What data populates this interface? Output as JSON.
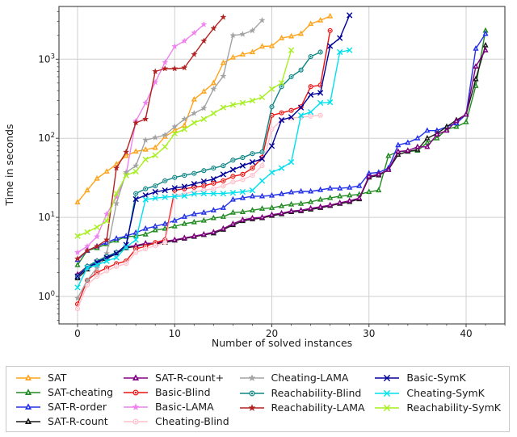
{
  "figure_title": "",
  "chart_data": {
    "type": "line",
    "title": "",
    "xlabel": "Number of solved instances",
    "ylabel": "Time in seconds",
    "x_scale": "linear",
    "y_scale": "log",
    "xlim": [
      -2,
      44
    ],
    "ylim": [
      0.45,
      4600
    ],
    "grid": true,
    "legend_position": "bottom",
    "x_tick_labels": [
      "0",
      "10",
      "20",
      "30",
      "40"
    ],
    "x_tick_values": [
      0,
      10,
      20,
      30,
      40
    ],
    "y_tick_exponents": [
      0,
      1,
      2,
      3
    ],
    "series": [
      {
        "name": "SAT",
        "color": "#FFA41B",
        "marker": "triangle",
        "values": [
          15.5,
          22,
          31,
          38,
          47,
          60,
          68,
          72,
          76,
          105,
          125,
          145,
          310,
          390,
          500,
          900,
          1050,
          1150,
          1230,
          1450,
          1470,
          1850,
          1950,
          2100,
          2800,
          3100,
          3500
        ]
      },
      {
        "name": "SAT-cheating",
        "color": "#228B22",
        "marker": "triangle",
        "values": [
          2.5,
          3.8,
          4.1,
          4.6,
          5.1,
          5.7,
          5.8,
          6.1,
          6.9,
          7.2,
          7.7,
          8.3,
          8.7,
          9.1,
          9.8,
          10.2,
          11.5,
          11.7,
          12.3,
          12.9,
          13.2,
          13.9,
          14.6,
          14.9,
          15.7,
          16.8,
          17.6,
          18.5,
          19,
          19.5,
          21,
          22,
          60,
          68,
          68,
          70,
          88,
          100,
          130,
          140,
          160,
          460,
          2300
        ]
      },
      {
        "name": "SAT-R-order",
        "color": "#2332E8",
        "marker": "triangle",
        "values": [
          2.9,
          3.8,
          4.3,
          4.8,
          5.4,
          5.8,
          6.4,
          7.2,
          7.7,
          8.3,
          9.1,
          10.2,
          11,
          11.5,
          12.3,
          13.2,
          16.8,
          17.6,
          18.5,
          18.5,
          18.9,
          19.8,
          20.8,
          21.3,
          21.3,
          22.3,
          23.3,
          23.3,
          23.8,
          25,
          36,
          37,
          42,
          82,
          88,
          100,
          125,
          125,
          140,
          155,
          200,
          1360,
          2100
        ]
      },
      {
        "name": "SAT-R-count",
        "color": "#1A1A1A",
        "marker": "triangle",
        "values": [
          1.7,
          2.2,
          2.6,
          3.0,
          3.5,
          4.1,
          4.3,
          4.6,
          4.6,
          4.8,
          5.1,
          5.4,
          5.7,
          6.0,
          6.3,
          7.0,
          8.0,
          9.0,
          9.5,
          9.8,
          10.5,
          11,
          11.7,
          12,
          12.6,
          13.2,
          14,
          14.9,
          15.7,
          17,
          32,
          34,
          40,
          62,
          68,
          72,
          100,
          115,
          140,
          170,
          200,
          560,
          1500
        ]
      },
      {
        "name": "SAT-R-count+",
        "color": "#800080",
        "marker": "triangle",
        "values": [
          1.9,
          2.4,
          2.8,
          3.2,
          3.6,
          4.2,
          4.4,
          4.7,
          4.7,
          5.0,
          5.2,
          5.5,
          5.8,
          6.1,
          6.5,
          7.2,
          8.3,
          9.3,
          9.8,
          10,
          10.8,
          11.3,
          12,
          12.3,
          13,
          13.6,
          14.3,
          15.3,
          16.2,
          17.5,
          33,
          35,
          40,
          68,
          70,
          78,
          78,
          112,
          125,
          165,
          200,
          810,
          1300
        ]
      },
      {
        "name": "Basic-Blind",
        "color": "#EE1111",
        "marker": "circle",
        "values": [
          0.8,
          1.6,
          2.0,
          2.3,
          2.6,
          2.8,
          4.0,
          4.3,
          4.8,
          5.2,
          22,
          23,
          24,
          25,
          27,
          29,
          33,
          35,
          42,
          57,
          195,
          210,
          225,
          250,
          450,
          470,
          2300
        ]
      },
      {
        "name": "Basic-LAMA",
        "color": "#EE82EE",
        "marker": "star",
        "values": [
          3.6,
          4.3,
          5.7,
          11,
          18,
          35,
          165,
          280,
          510,
          910,
          1450,
          1700,
          2150,
          2750
        ]
      },
      {
        "name": "Cheating-Blind",
        "color": "#FFC0CB",
        "marker": "circle",
        "values": [
          0.7,
          1.4,
          1.8,
          2.1,
          2.4,
          2.6,
          3.6,
          4.0,
          4.4,
          4.8,
          19,
          20,
          21,
          22,
          23,
          25,
          28,
          30,
          34,
          45,
          130,
          170,
          180,
          185,
          190,
          195
        ]
      },
      {
        "name": "Cheating-LAMA",
        "color": "#A3A3A3",
        "marker": "star",
        "values": [
          0.95,
          1.6,
          2.3,
          3.5,
          15,
          37,
          45,
          95,
          102,
          110,
          140,
          175,
          207,
          240,
          420,
          610,
          2000,
          2070,
          2300,
          3100
        ]
      },
      {
        "name": "Reachability-Blind",
        "color": "#0E8584",
        "marker": "circle",
        "values": [
          1.8,
          2.4,
          2.8,
          3.2,
          3.6,
          4.2,
          20,
          23,
          25,
          29,
          32,
          34,
          36,
          39,
          42,
          45,
          53,
          57,
          64,
          67,
          250,
          450,
          600,
          730,
          1080,
          1230
        ]
      },
      {
        "name": "Reachability-LAMA",
        "color": "#B22222",
        "marker": "star",
        "values": [
          3.0,
          3.8,
          4.3,
          5.2,
          42,
          67,
          157,
          175,
          700,
          760,
          760,
          780,
          1150,
          1700,
          2450,
          3400
        ]
      },
      {
        "name": "Basic-SymK",
        "color": "#000099",
        "marker": "x",
        "values": [
          1.8,
          2.3,
          2.7,
          3.1,
          3.5,
          4.5,
          17,
          19,
          21,
          22,
          23.5,
          24.5,
          26.5,
          28.5,
          30.5,
          35,
          40,
          45,
          50,
          55,
          80,
          170,
          185,
          245,
          355,
          375,
          1470,
          1850,
          3600
        ]
      },
      {
        "name": "Cheating-SymK",
        "color": "#00E1EE",
        "marker": "x",
        "values": [
          1.3,
          2.3,
          2.5,
          2.8,
          3.1,
          4.2,
          5.2,
          16.8,
          17.5,
          18,
          18.4,
          18.7,
          19.8,
          20,
          20,
          20,
          20.5,
          21,
          22,
          29,
          37,
          42,
          50,
          195,
          215,
          280,
          285,
          1230,
          1300
        ]
      },
      {
        "name": "Reachability-SymK",
        "color": "#A6F020",
        "marker": "x",
        "values": [
          5.8,
          6.5,
          7.5,
          9,
          20,
          34,
          38,
          54,
          61,
          78,
          115,
          130,
          157,
          175,
          207,
          245,
          265,
          280,
          300,
          330,
          420,
          500,
          1300
        ]
      }
    ]
  },
  "legend": {
    "columns": [
      [
        "SAT",
        "SAT-cheating",
        "SAT-R-order",
        "SAT-R-count"
      ],
      [
        "SAT-R-count+",
        "Basic-Blind",
        "Basic-LAMA",
        "Cheating-Blind"
      ],
      [
        "Cheating-LAMA",
        "Reachability-Blind",
        "Reachability-LAMA"
      ],
      [
        "Basic-SymK",
        "Cheating-SymK",
        "Reachability-SymK"
      ]
    ]
  }
}
